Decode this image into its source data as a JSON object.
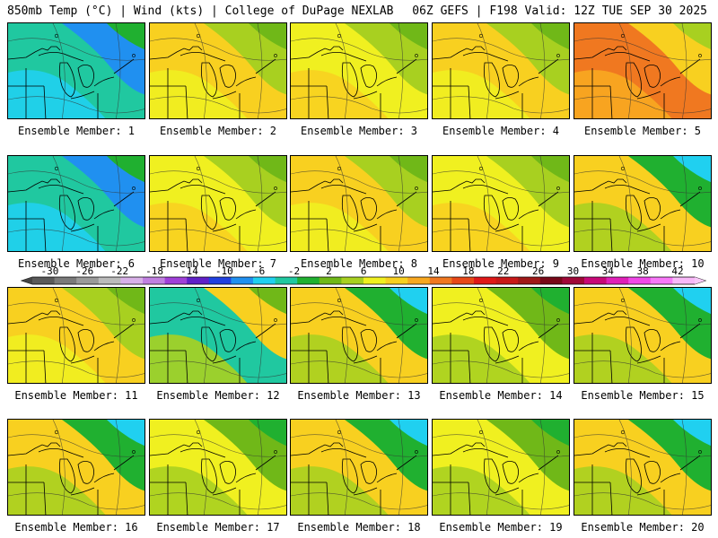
{
  "header": {
    "left": "850mb Temp (°C) | Wind (kts) | College of DuPage NEXLAB",
    "right": "06Z GEFS | F198 Valid: 12Z TUE SEP 30 2025"
  },
  "colorbar": {
    "tick_labels": [
      "-30",
      "-26",
      "-22",
      "-18",
      "-14",
      "-10",
      "-6",
      "-2",
      "2",
      "6",
      "10",
      "14",
      "18",
      "22",
      "26",
      "30",
      "34",
      "38",
      "42"
    ],
    "colors": [
      "#5a5a5a",
      "#7a7a7a",
      "#9a9a9a",
      "#bbbbbb",
      "#d8b0e8",
      "#c080e0",
      "#a040d8",
      "#6020c8",
      "#2040e0",
      "#2090f0",
      "#20d0f0",
      "#20c8a0",
      "#20b030",
      "#70b818",
      "#a8d020",
      "#f0f020",
      "#f8d020",
      "#f8a820",
      "#f07820",
      "#e84818",
      "#e01818",
      "#c81818",
      "#a01818",
      "#780818",
      "#a00838",
      "#c80878",
      "#e020b8",
      "#f048e8",
      "#f878f8",
      "#f8b8f8"
    ]
  },
  "panels": [
    {
      "label": "Ensemble Member: 1",
      "scheme": "cold"
    },
    {
      "label": "Ensemble Member: 2",
      "scheme": "warm"
    },
    {
      "label": "Ensemble Member: 3",
      "scheme": "yellow"
    },
    {
      "label": "Ensemble Member: 4",
      "scheme": "warm"
    },
    {
      "label": "Ensemble Member: 5",
      "scheme": "hot"
    },
    {
      "label": "Ensemble Member: 6",
      "scheme": "cold"
    },
    {
      "label": "Ensemble Member: 7",
      "scheme": "yellow"
    },
    {
      "label": "Ensemble Member: 8",
      "scheme": "warm"
    },
    {
      "label": "Ensemble Member: 9",
      "scheme": "yellow"
    },
    {
      "label": "Ensemble Member: 10",
      "scheme": "mixed"
    },
    {
      "label": "Ensemble Member: 11",
      "scheme": "warm"
    },
    {
      "label": "Ensemble Member: 12",
      "scheme": "westcold"
    },
    {
      "label": "Ensemble Member: 13",
      "scheme": "mixed"
    },
    {
      "label": "Ensemble Member: 14",
      "scheme": "green"
    },
    {
      "label": "Ensemble Member: 15",
      "scheme": "mixed"
    },
    {
      "label": "Ensemble Member: 16",
      "scheme": "mixed"
    },
    {
      "label": "Ensemble Member: 17",
      "scheme": "green"
    },
    {
      "label": "Ensemble Member: 18",
      "scheme": "mixed"
    },
    {
      "label": "Ensemble Member: 19",
      "scheme": "green"
    },
    {
      "label": "Ensemble Member: 20",
      "scheme": "mixed"
    }
  ],
  "schemes": {
    "cold": [
      "#20c8a0",
      "#20d0f0",
      "#2090f0",
      "#20b030"
    ],
    "warm": [
      "#f8d020",
      "#f0f020",
      "#a8d020",
      "#70b818"
    ],
    "yellow": [
      "#f0f020",
      "#f8d020",
      "#a8d020",
      "#70b818"
    ],
    "hot": [
      "#f07820",
      "#f8a820",
      "#f8d020",
      "#a8d020"
    ],
    "mixed": [
      "#f8d020",
      "#a8d020",
      "#20b030",
      "#20d0f0"
    ],
    "westcold": [
      "#20c8a0",
      "#a8d020",
      "#f8d020",
      "#70b818"
    ],
    "green": [
      "#f0f020",
      "#a8d020",
      "#70b818",
      "#20b030"
    ]
  }
}
